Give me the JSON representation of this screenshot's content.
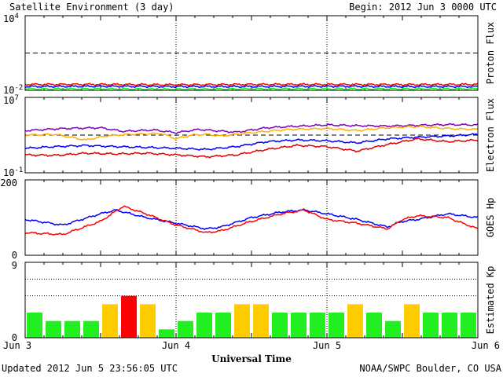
{
  "header": {
    "title": "Satellite Environment (3 day)",
    "begin": "Begin:  2012 Jun 3 0000 UTC"
  },
  "footer": {
    "updated": "Updated 2012 Jun  5 23:56:05 UTC",
    "credit": "NOAA/SWPC Boulder, CO USA"
  },
  "x_axis": {
    "title": "Universal Time",
    "ticks": [
      "Jun 3",
      "Jun 4",
      "Jun 5",
      "Jun 6"
    ]
  },
  "chart_data": [
    {
      "type": "line",
      "panel": "proton-flux",
      "ylabel": "Proton Flux",
      "yscale": "log",
      "ylim": [
        0.01,
        10000
      ],
      "yticks": [
        {
          "base": "10",
          "exp": "4"
        },
        {
          "base": "10",
          "exp": "-2"
        }
      ],
      "threshold": 10,
      "x_unit": "day offset from 2012 Jun 3 0000 UTC",
      "series": [
        {
          "color": "#ff0000",
          "x": [
            0,
            0.5,
            1,
            1.5,
            2,
            2.5,
            3
          ],
          "values": [
            0.03,
            0.03,
            0.028,
            0.03,
            0.03,
            0.029,
            0.03
          ]
        },
        {
          "color": "#0000ff",
          "x": [
            0,
            0.5,
            1,
            1.5,
            2,
            2.5,
            3
          ],
          "values": [
            0.02,
            0.021,
            0.02,
            0.02,
            0.021,
            0.02,
            0.02
          ]
        },
        {
          "color": "#00ff00",
          "x": [
            0,
            0.5,
            1,
            1.5,
            2,
            2.5,
            3
          ],
          "values": [
            0.013,
            0.013,
            0.012,
            0.013,
            0.013,
            0.013,
            0.013
          ]
        }
      ]
    },
    {
      "type": "line",
      "panel": "electron-flux",
      "ylabel": "Electron Flux",
      "yscale": "log",
      "ylim": [
        0.1,
        10000000
      ],
      "yticks": [
        {
          "base": "10",
          "exp": "7"
        },
        {
          "base": "10",
          "exp": "-1"
        }
      ],
      "threshold": 1000,
      "series": [
        {
          "color": "#8000c0",
          "x": [
            0,
            0.25,
            0.5,
            0.65,
            0.85,
            1.0,
            1.15,
            1.25,
            1.4,
            1.5,
            1.6,
            1.75,
            2.0,
            2.2,
            2.4,
            2.6,
            2.8,
            3.0
          ],
          "values": [
            3000,
            5000,
            6000,
            2500,
            3500,
            1800,
            4000,
            3000,
            2000,
            3500,
            6000,
            8000,
            12000,
            10000,
            9000,
            11000,
            13000,
            12000
          ]
        },
        {
          "color": "#ffb000",
          "x": [
            0,
            0.2,
            0.4,
            0.55,
            0.7,
            0.9,
            1.0,
            1.1,
            1.2,
            1.3,
            1.45,
            1.6,
            1.75,
            2.0,
            2.2,
            2.4,
            2.6,
            2.8,
            3.0
          ],
          "values": [
            1000,
            1200,
            300,
            900,
            1200,
            1500,
            400,
            1000,
            1200,
            800,
            1500,
            2500,
            4000,
            5000,
            3000,
            6000,
            8000,
            5000,
            4000
          ]
        },
        {
          "color": "#0000ff",
          "x": [
            0,
            0.2,
            0.4,
            0.6,
            0.8,
            1.0,
            1.2,
            1.4,
            1.6,
            1.8,
            2.0,
            2.2,
            2.4,
            2.6,
            2.8,
            3.0
          ],
          "values": [
            40,
            60,
            80,
            60,
            50,
            40,
            30,
            60,
            200,
            300,
            250,
            150,
            400,
            600,
            800,
            1200
          ]
        },
        {
          "color": "#e00000",
          "x": [
            0,
            0.2,
            0.4,
            0.6,
            0.8,
            1.0,
            1.2,
            1.4,
            1.6,
            1.8,
            2.0,
            2.2,
            2.4,
            2.6,
            2.8,
            3.0
          ],
          "values": [
            8,
            7,
            12,
            10,
            12,
            8,
            5,
            8,
            30,
            80,
            60,
            20,
            100,
            400,
            200,
            300
          ]
        }
      ]
    },
    {
      "type": "line",
      "panel": "goes-hp",
      "ylabel": "GOES Hp",
      "ylim": [
        0,
        200
      ],
      "yticks": [
        0,
        200
      ],
      "series": [
        {
          "color": "#0000ff",
          "x": [
            0,
            0.25,
            0.5,
            0.6,
            0.8,
            1.0,
            1.2,
            1.3,
            1.5,
            1.7,
            1.85,
            2.0,
            2.2,
            2.4,
            2.5,
            2.6,
            2.8,
            3.0
          ],
          "values": [
            95,
            80,
            110,
            120,
            100,
            85,
            70,
            75,
            100,
            115,
            120,
            110,
            95,
            75,
            90,
            95,
            110,
            100
          ]
        },
        {
          "color": "#ff0000",
          "x": [
            0,
            0.25,
            0.5,
            0.65,
            0.8,
            1.0,
            1.2,
            1.3,
            1.5,
            1.7,
            1.85,
            2.0,
            2.2,
            2.4,
            2.5,
            2.6,
            2.8,
            3.0
          ],
          "values": [
            60,
            55,
            90,
            130,
            110,
            80,
            60,
            65,
            90,
            110,
            120,
            95,
            85,
            70,
            95,
            105,
            100,
            70
          ]
        }
      ]
    },
    {
      "type": "bar",
      "panel": "estimated-kp",
      "ylabel": "Estimated Kp",
      "ylim": [
        0,
        9
      ],
      "yticks": [
        0,
        9
      ],
      "values": [
        3,
        2,
        2,
        2,
        4,
        5,
        4,
        1,
        2,
        3,
        3,
        4,
        4,
        3,
        3,
        3,
        3,
        4,
        3,
        2,
        4,
        3,
        3,
        3
      ],
      "colors": {
        "quiet": "#22ee22",
        "active": "#ffcc00",
        "storm": "#ff0000"
      }
    }
  ]
}
